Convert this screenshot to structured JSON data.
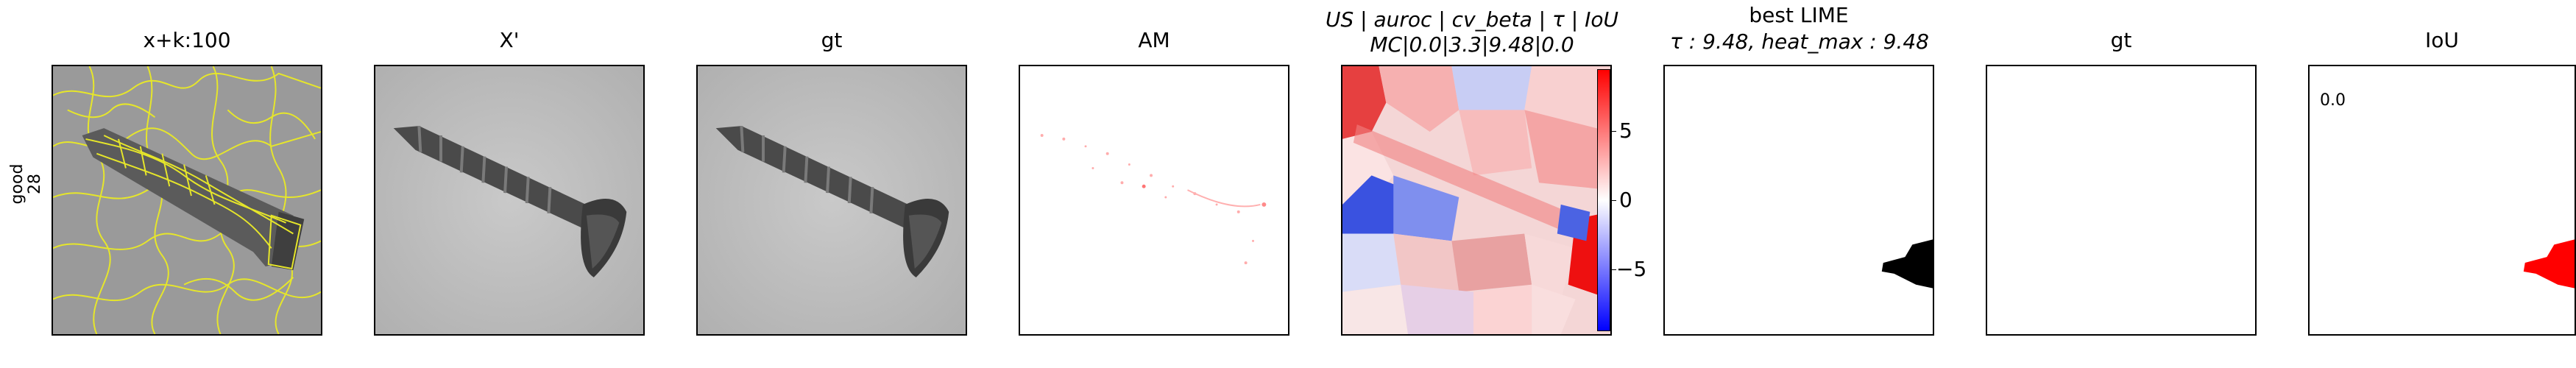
{
  "row_label": {
    "line1": "good",
    "line2": "28"
  },
  "panels": [
    {
      "title": "x+k:100"
    },
    {
      "title": "X'"
    },
    {
      "title": "gt"
    },
    {
      "title": "AM"
    },
    {
      "title_line1": "US | auroc | cv_beta | τ | IoU",
      "title_line2": "MC|0.0|3.3|9.48|0.0"
    },
    {
      "title_line1": "best LIME",
      "title_line2": "τ : 9.48, heat_max : 9.48"
    },
    {
      "title": "gt"
    },
    {
      "title": "IoU"
    }
  ],
  "colorbar": {
    "ticks": [
      "5",
      "0",
      "−5"
    ],
    "colors": {
      "max": "#ff0000",
      "mid": "#ffffff",
      "min": "#0000ff"
    }
  },
  "iou_value": "0.0",
  "colors": {
    "boundary": "#e6e62a",
    "mask": "#000000",
    "iou_overlay": "#ff0000"
  }
}
